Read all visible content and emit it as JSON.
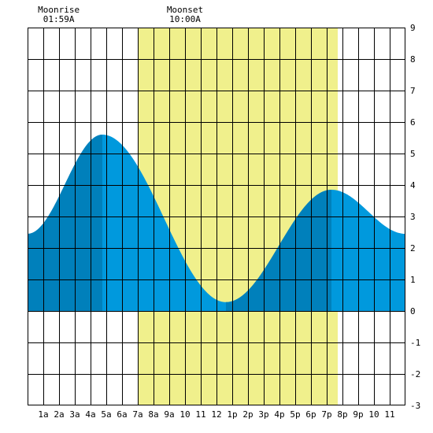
{
  "annotations": [
    {
      "label": "Moonrise",
      "time": "01:59A",
      "hour": 1.983
    },
    {
      "label": "Moonset",
      "time": "10:00A",
      "hour": 10.0
    }
  ],
  "chart_data": {
    "type": "area",
    "title": "",
    "xlabel": "",
    "ylabel": "",
    "xlim": [
      0,
      24
    ],
    "ylim": [
      -3,
      9
    ],
    "x_tick_labels": [
      {
        "hour": 1,
        "label": "1a"
      },
      {
        "hour": 2,
        "label": "2a"
      },
      {
        "hour": 3,
        "label": "3a"
      },
      {
        "hour": 4,
        "label": "4a"
      },
      {
        "hour": 5,
        "label": "5a"
      },
      {
        "hour": 6,
        "label": "6a"
      },
      {
        "hour": 7,
        "label": "7a"
      },
      {
        "hour": 8,
        "label": "8a"
      },
      {
        "hour": 9,
        "label": "9a"
      },
      {
        "hour": 10,
        "label": "10"
      },
      {
        "hour": 11,
        "label": "11"
      },
      {
        "hour": 12,
        "label": "12"
      },
      {
        "hour": 13,
        "label": "1p"
      },
      {
        "hour": 14,
        "label": "2p"
      },
      {
        "hour": 15,
        "label": "3p"
      },
      {
        "hour": 16,
        "label": "4p"
      },
      {
        "hour": 17,
        "label": "5p"
      },
      {
        "hour": 18,
        "label": "6p"
      },
      {
        "hour": 19,
        "label": "7p"
      },
      {
        "hour": 20,
        "label": "8p"
      },
      {
        "hour": 21,
        "label": "9p"
      },
      {
        "hour": 22,
        "label": "10"
      },
      {
        "hour": 23,
        "label": "11"
      }
    ],
    "y_ticks": [
      9,
      8,
      7,
      6,
      5,
      4,
      3,
      2,
      1,
      0,
      -1,
      -2,
      -3
    ],
    "grid": true,
    "daylight_hours": [
      7,
      19.7
    ],
    "tide_extremes": [
      {
        "type": "start",
        "hour": 0,
        "height": 2.45
      },
      {
        "type": "high",
        "hour": 4.75,
        "height": 5.6
      },
      {
        "type": "low",
        "hour": 12.6,
        "height": 0.28
      },
      {
        "type": "high",
        "hour": 19.3,
        "height": 3.85
      },
      {
        "type": "end",
        "hour": 24,
        "height": 2.45
      }
    ],
    "shade_bands": [
      [
        0,
        4.75
      ],
      [
        12.6,
        19.3
      ]
    ],
    "colors": {
      "tide_fill": "#0099dd",
      "tide_fill_alt": "#0080bb",
      "daylight": "#f0f08c",
      "grid": "#000000",
      "background": "#ffffff"
    }
  }
}
